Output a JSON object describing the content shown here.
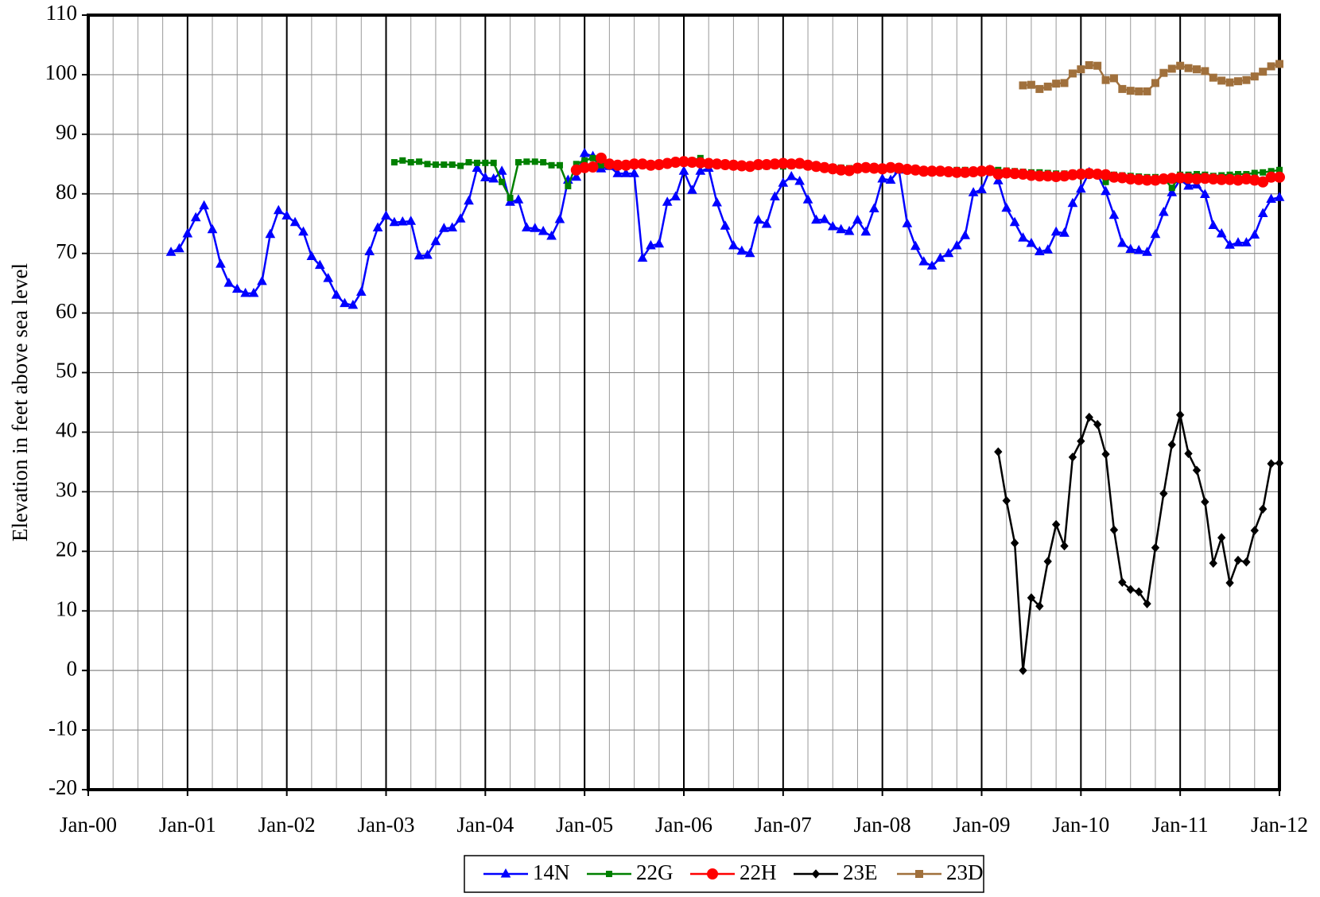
{
  "chart_data": {
    "type": "line",
    "y_label": "Elevation in feet above sea level",
    "xlim": [
      "Jan-00",
      "Jan-12"
    ],
    "xticks": [
      "Jan-00",
      "Jan-01",
      "Jan-02",
      "Jan-03",
      "Jan-04",
      "Jan-05",
      "Jan-06",
      "Jan-07",
      "Jan-08",
      "Jan-09",
      "Jan-10",
      "Jan-11",
      "Jan-12"
    ],
    "ylim": [
      -20,
      110
    ],
    "yticks": [
      -20,
      -10,
      0,
      10,
      20,
      30,
      40,
      50,
      60,
      70,
      80,
      90,
      100,
      110
    ],
    "grid": true,
    "legend": "bottom",
    "x": [
      "Nov-00",
      "Dec-00",
      "Jan-01",
      "Feb-01",
      "Mar-01",
      "Apr-01",
      "May-01",
      "Jun-01",
      "Jul-01",
      "Aug-01",
      "Sep-01",
      "Oct-01",
      "Nov-01",
      "Dec-01",
      "Jan-02",
      "Feb-02",
      "Mar-02",
      "Apr-02",
      "May-02",
      "Jun-02",
      "Jul-02",
      "Aug-02",
      "Sep-02",
      "Oct-02",
      "Nov-02",
      "Dec-02",
      "Jan-03",
      "Feb-03",
      "Mar-03",
      "Apr-03",
      "May-03",
      "Jun-03",
      "Jul-03",
      "Aug-03",
      "Sep-03",
      "Oct-03",
      "Nov-03",
      "Dec-03",
      "Jan-04",
      "Feb-04",
      "Mar-04",
      "Apr-04",
      "May-04",
      "Jun-04",
      "Jul-04",
      "Aug-04",
      "Sep-04",
      "Oct-04",
      "Nov-04",
      "Dec-04",
      "Jan-05",
      "Feb-05",
      "Mar-05",
      "Apr-05",
      "May-05",
      "Jun-05",
      "Jul-05",
      "Aug-05",
      "Sep-05",
      "Oct-05",
      "Nov-05",
      "Dec-05",
      "Jan-06",
      "Feb-06",
      "Mar-06",
      "Apr-06",
      "May-06",
      "Jun-06",
      "Jul-06",
      "Aug-06",
      "Sep-06",
      "Oct-06",
      "Nov-06",
      "Dec-06",
      "Jan-07",
      "Feb-07",
      "Mar-07",
      "Apr-07",
      "May-07",
      "Jun-07",
      "Jul-07",
      "Aug-07",
      "Sep-07",
      "Oct-07",
      "Nov-07",
      "Dec-07",
      "Jan-08",
      "Feb-08",
      "Mar-08",
      "Apr-08",
      "May-08",
      "Jun-08",
      "Jul-08",
      "Aug-08",
      "Sep-08",
      "Oct-08",
      "Nov-08",
      "Dec-08",
      "Jan-09",
      "Feb-09",
      "Mar-09",
      "Apr-09",
      "May-09",
      "Jun-09",
      "Jul-09",
      "Aug-09",
      "Sep-09",
      "Oct-09",
      "Nov-09",
      "Dec-09",
      "Jan-10",
      "Feb-10",
      "Mar-10",
      "Apr-10",
      "May-10",
      "Jun-10",
      "Jul-10",
      "Aug-10",
      "Sep-10",
      "Oct-10",
      "Nov-10",
      "Dec-10",
      "Jan-11",
      "Feb-11",
      "Mar-11",
      "Apr-11",
      "May-11",
      "Jun-11",
      "Jul-11",
      "Aug-11",
      "Sep-11",
      "Oct-11",
      "Nov-11",
      "Dec-11",
      "Jan-12"
    ],
    "series": [
      {
        "name": "14N",
        "color": "#0000ff",
        "marker": "triangle",
        "values": [
          70.2,
          70.8,
          73.3,
          76,
          78,
          74,
          68.2,
          65,
          64,
          63.3,
          63.3,
          65.3,
          73.2,
          77.2,
          76.3,
          75.2,
          73.6,
          69.5,
          68,
          65.8,
          63,
          61.6,
          61.3,
          63.5,
          70.3,
          74.3,
          76.3,
          75.2,
          75.3,
          75.4,
          69.6,
          69.7,
          72,
          74.2,
          74.3,
          75.8,
          78.8,
          84.3,
          82.7,
          82.5,
          83.8,
          78.6,
          79,
          74.3,
          74.2,
          73.7,
          72.9,
          75.7,
          82.3,
          82.8,
          86.8,
          86.3,
          84.2,
          84.6,
          83.4,
          83.4,
          83.4,
          69.2,
          71.3,
          71.6,
          78.6,
          79.5,
          83.8,
          80.6,
          83.8,
          84.3,
          78.5,
          74.6,
          71.3,
          70.4,
          70,
          75.6,
          74.9,
          79.5,
          81.8,
          82.9,
          82.1,
          79,
          75.6,
          75.7,
          74.5,
          74,
          73.7,
          75.6,
          73.6,
          77.5,
          82.5,
          82.3,
          84,
          75,
          71.2,
          68.6,
          67.9,
          69.2,
          70,
          71.3,
          73,
          80.2,
          80.7,
          84,
          82.2,
          77.6,
          75.2,
          72.6,
          71.7,
          70.3,
          70.6,
          73.6,
          73.4,
          78.4,
          80.8,
          83.6,
          83.3,
          80.4,
          76.4,
          71.7,
          70.7,
          70.5,
          70.2,
          73.2,
          76.9,
          80.2,
          82.4,
          81.3,
          81.5,
          79.9,
          74.7,
          73.3,
          71.4,
          71.8,
          71.8,
          73.1,
          76.7,
          79.1,
          79.4
        ]
      },
      {
        "name": "22G",
        "color": "#008000",
        "marker": "square-small",
        "values": [
          null,
          null,
          null,
          null,
          null,
          null,
          null,
          null,
          null,
          null,
          null,
          null,
          null,
          null,
          null,
          null,
          null,
          null,
          null,
          null,
          null,
          null,
          null,
          null,
          null,
          null,
          null,
          85.3,
          85.6,
          85.3,
          85.4,
          85,
          84.9,
          84.9,
          84.9,
          84.7,
          85.3,
          85.2,
          85.2,
          85.2,
          82,
          79.3,
          85.3,
          85.4,
          85.4,
          85.3,
          84.8,
          84.8,
          81.3,
          85,
          85.6,
          86,
          84.8,
          84.9,
          84.9,
          84.8,
          84.8,
          84.9,
          85,
          85.1,
          85.2,
          85.3,
          85.4,
          85.6,
          86,
          85.2,
          85,
          84.9,
          84.8,
          84.7,
          84.5,
          84.6,
          84.6,
          84.7,
          84.6,
          84.7,
          84.8,
          84.6,
          84.6,
          84.5,
          84.5,
          84.4,
          84.3,
          84.3,
          84.4,
          84.3,
          84.3,
          84.2,
          84.1,
          84.1,
          84,
          84,
          83.9,
          83.9,
          83.9,
          84,
          84,
          83.9,
          84,
          84.1,
          84,
          83.9,
          83.8,
          83.7,
          83.6,
          83.6,
          83.5,
          83.4,
          83.4,
          83.5,
          83.6,
          83.7,
          83.5,
          82,
          83.2,
          83.1,
          83,
          82.9,
          82.8,
          82.8,
          82.7,
          81,
          83.2,
          83.2,
          83.3,
          83.2,
          83,
          83.1,
          83.2,
          83.3,
          83.3,
          83.5,
          83.6,
          83.8,
          84
        ]
      },
      {
        "name": "22H",
        "color": "#ff0000",
        "marker": "circle",
        "values": [
          null,
          null,
          null,
          null,
          null,
          null,
          null,
          null,
          null,
          null,
          null,
          null,
          null,
          null,
          null,
          null,
          null,
          null,
          null,
          null,
          null,
          null,
          null,
          null,
          null,
          null,
          null,
          null,
          null,
          null,
          null,
          null,
          null,
          null,
          null,
          null,
          null,
          null,
          null,
          null,
          null,
          null,
          null,
          null,
          null,
          null,
          null,
          null,
          null,
          84,
          84.4,
          84.5,
          86,
          85,
          84.8,
          84.8,
          85,
          85,
          84.8,
          84.9,
          85.1,
          85.3,
          85.4,
          85.3,
          85.2,
          85.1,
          85,
          84.9,
          84.8,
          84.7,
          84.6,
          84.9,
          84.9,
          85,
          85.1,
          85,
          85.1,
          84.8,
          84.6,
          84.4,
          84.2,
          84,
          83.9,
          84.3,
          84.4,
          84.3,
          84.2,
          84.4,
          84.3,
          84.1,
          84,
          83.8,
          83.8,
          83.8,
          83.7,
          83.6,
          83.6,
          83.7,
          83.8,
          83.9,
          83.3,
          83.5,
          83.4,
          83.3,
          83.1,
          83,
          83,
          82.9,
          83,
          83.2,
          83.3,
          83.4,
          83.3,
          83.2,
          82.8,
          82.7,
          82.5,
          82.4,
          82.3,
          82.3,
          82.5,
          82.6,
          82.7,
          82.6,
          82.5,
          82.6,
          82.5,
          82.4,
          82.4,
          82.3,
          82.5,
          82.3,
          82,
          82.8,
          82.8
        ]
      },
      {
        "name": "23E",
        "color": "#000000",
        "marker": "diamond",
        "values": [
          null,
          null,
          null,
          null,
          null,
          null,
          null,
          null,
          null,
          null,
          null,
          null,
          null,
          null,
          null,
          null,
          null,
          null,
          null,
          null,
          null,
          null,
          null,
          null,
          null,
          null,
          null,
          null,
          null,
          null,
          null,
          null,
          null,
          null,
          null,
          null,
          null,
          null,
          null,
          null,
          null,
          null,
          null,
          null,
          null,
          null,
          null,
          null,
          null,
          null,
          null,
          null,
          null,
          null,
          null,
          null,
          null,
          null,
          null,
          null,
          null,
          null,
          null,
          null,
          null,
          null,
          null,
          null,
          null,
          null,
          null,
          null,
          null,
          null,
          null,
          null,
          null,
          null,
          null,
          null,
          null,
          null,
          null,
          null,
          null,
          null,
          null,
          null,
          null,
          null,
          null,
          null,
          null,
          null,
          null,
          null,
          null,
          null,
          null,
          null,
          36.7,
          28.5,
          21.4,
          0,
          12.2,
          10.8,
          18.3,
          24.5,
          20.9,
          35.8,
          38.5,
          42.5,
          41.3,
          36.3,
          23.6,
          14.8,
          13.6,
          13.2,
          11.2,
          20.6,
          29.7,
          37.9,
          42.9,
          36.4,
          33.6,
          28.3,
          18,
          22.3,
          14.7,
          18.5,
          18.2,
          23.5,
          27.1,
          34.7,
          34.8
        ]
      },
      {
        "name": "23D",
        "color": "#a0703c",
        "marker": "square",
        "values": [
          null,
          null,
          null,
          null,
          null,
          null,
          null,
          null,
          null,
          null,
          null,
          null,
          null,
          null,
          null,
          null,
          null,
          null,
          null,
          null,
          null,
          null,
          null,
          null,
          null,
          null,
          null,
          null,
          null,
          null,
          null,
          null,
          null,
          null,
          null,
          null,
          null,
          null,
          null,
          null,
          null,
          null,
          null,
          null,
          null,
          null,
          null,
          null,
          null,
          null,
          null,
          null,
          null,
          null,
          null,
          null,
          null,
          null,
          null,
          null,
          null,
          null,
          null,
          null,
          null,
          null,
          null,
          null,
          null,
          null,
          null,
          null,
          null,
          null,
          null,
          null,
          null,
          null,
          null,
          null,
          null,
          null,
          null,
          null,
          null,
          null,
          null,
          null,
          null,
          null,
          null,
          null,
          null,
          null,
          null,
          null,
          null,
          null,
          null,
          null,
          null,
          null,
          null,
          98.2,
          98.3,
          97.6,
          98,
          98.5,
          98.6,
          100.2,
          100.9,
          101.6,
          101.5,
          99.1,
          99.4,
          97.6,
          97.3,
          97.2,
          97.2,
          98.6,
          100.3,
          101,
          101.5,
          101.1,
          100.9,
          100.6,
          99.5,
          99,
          98.7,
          98.9,
          99.1,
          99.7,
          100.5,
          101.4,
          101.8
        ]
      }
    ]
  }
}
